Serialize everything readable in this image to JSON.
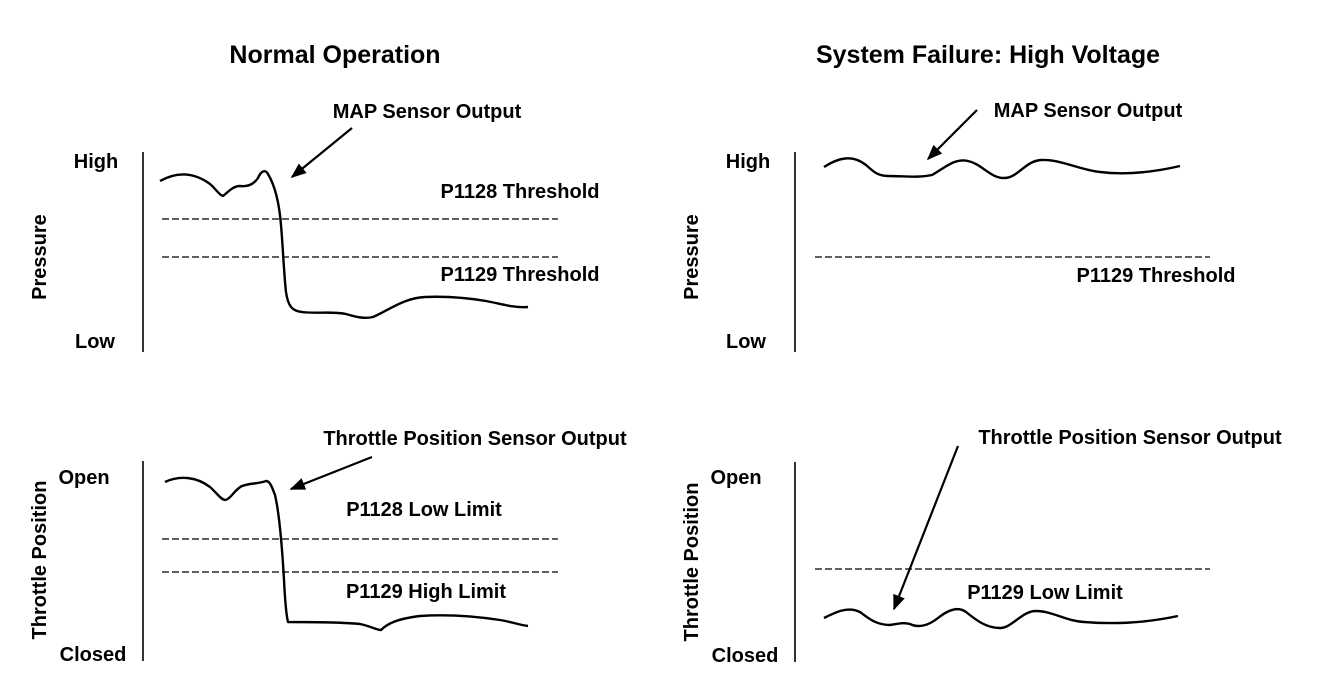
{
  "panels": {
    "normal": {
      "title": "Normal Operation",
      "pressure": {
        "y_label": "Pressure",
        "high_label": "High",
        "low_label": "Low",
        "callout": "MAP Sensor Output",
        "threshold_upper": "P1128 Threshold",
        "threshold_lower": "P1129 Threshold"
      },
      "throttle": {
        "y_label": "Throttle Position",
        "high_label": "Open",
        "low_label": "Closed",
        "callout": "Throttle Position Sensor Output",
        "limit_upper": "P1128 Low Limit",
        "limit_lower": "P1129 High Limit"
      }
    },
    "failure": {
      "title": "System Failure: High Voltage",
      "pressure": {
        "y_label": "Pressure",
        "high_label": "High",
        "low_label": "Low",
        "callout": "MAP Sensor Output",
        "threshold": "P1129 Threshold"
      },
      "throttle": {
        "y_label": "Throttle Position",
        "high_label": "Open",
        "low_label": "Closed",
        "callout": "Throttle Position Sensor Output",
        "limit": "P1129 Low Limit"
      }
    }
  }
}
